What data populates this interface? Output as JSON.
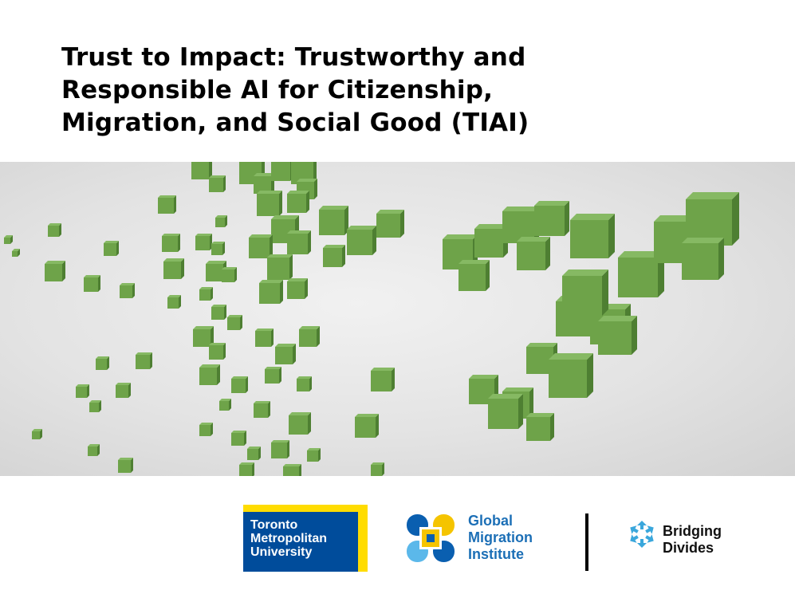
{
  "title": {
    "lines": [
      "Trust to Impact: Trustworthy and",
      "Responsible AI for Citizenship,",
      "Migration, and Social Good (TIAI)"
    ]
  },
  "banner": {
    "description_icon": "green-cubes-illustration",
    "cube_color": "#6ea349",
    "background_color": "#e6e6e6"
  },
  "logos": {
    "tmu": {
      "lines": [
        "Toronto",
        "Metropolitan",
        "University"
      ],
      "blue": "#004c9b",
      "yellow": "#ffdc00"
    },
    "gmi": {
      "lines": [
        "Global",
        "Migration",
        "Institute"
      ],
      "color": "#1c6fb6",
      "mark_icon": "interlocking-squares-logo"
    },
    "bridging_divides": {
      "lines": [
        "Bridging",
        "Divides"
      ],
      "mark_icon": "circle-of-arrows-logo",
      "color": "#3aa7dc"
    }
  }
}
